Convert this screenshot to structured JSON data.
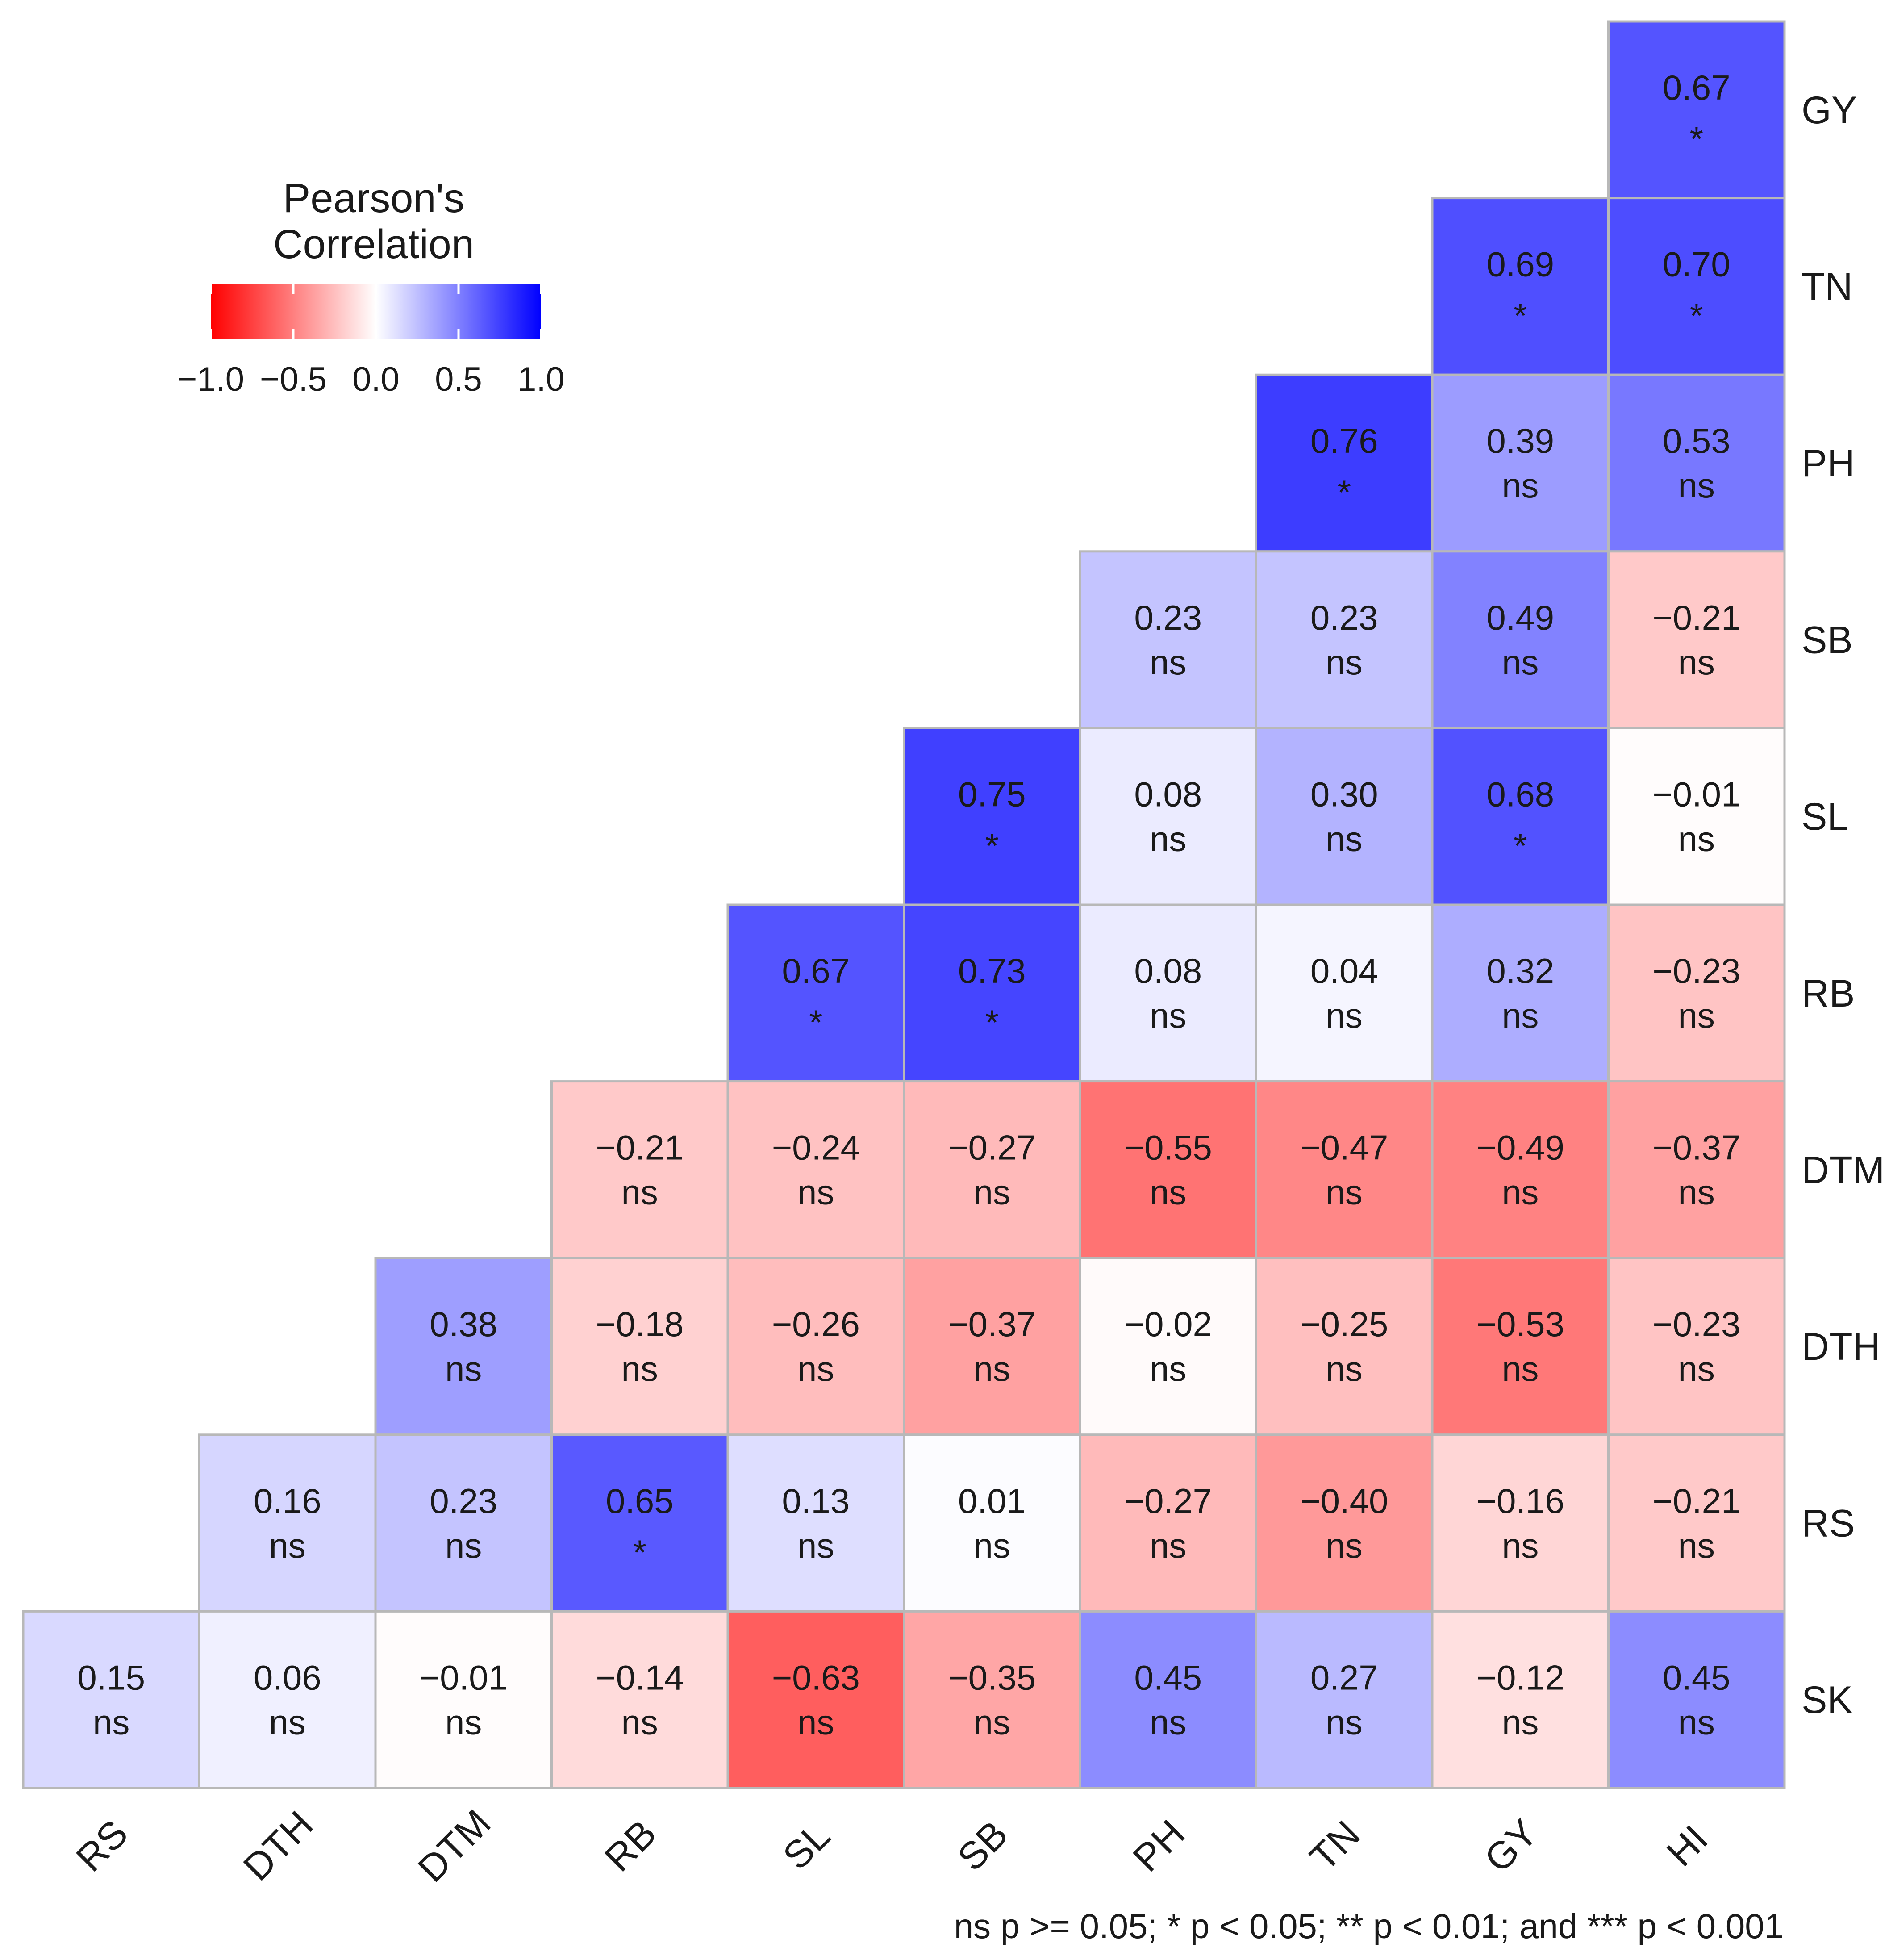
{
  "chart_data": {
    "type": "heatmap",
    "title": "",
    "method": "Pearson",
    "rows": [
      "GY",
      "TN",
      "PH",
      "SB",
      "SL",
      "RB",
      "DTM",
      "DTH",
      "RS",
      "SK"
    ],
    "columns": [
      "RS",
      "DTH",
      "DTM",
      "RB",
      "SL",
      "SB",
      "PH",
      "TN",
      "GY",
      "HI"
    ],
    "cells": [
      {
        "row": "GY",
        "col": "HI",
        "r": 0.67,
        "sig": "*"
      },
      {
        "row": "TN",
        "col": "GY",
        "r": 0.69,
        "sig": "*"
      },
      {
        "row": "TN",
        "col": "HI",
        "r": 0.7,
        "sig": "*"
      },
      {
        "row": "PH",
        "col": "TN",
        "r": 0.76,
        "sig": "*"
      },
      {
        "row": "PH",
        "col": "GY",
        "r": 0.39,
        "sig": "ns"
      },
      {
        "row": "PH",
        "col": "HI",
        "r": 0.53,
        "sig": "ns"
      },
      {
        "row": "SB",
        "col": "PH",
        "r": 0.23,
        "sig": "ns"
      },
      {
        "row": "SB",
        "col": "TN",
        "r": 0.23,
        "sig": "ns"
      },
      {
        "row": "SB",
        "col": "GY",
        "r": 0.49,
        "sig": "ns"
      },
      {
        "row": "SB",
        "col": "HI",
        "r": -0.21,
        "sig": "ns"
      },
      {
        "row": "SL",
        "col": "SB",
        "r": 0.75,
        "sig": "*"
      },
      {
        "row": "SL",
        "col": "PH",
        "r": 0.08,
        "sig": "ns"
      },
      {
        "row": "SL",
        "col": "TN",
        "r": 0.3,
        "sig": "ns"
      },
      {
        "row": "SL",
        "col": "GY",
        "r": 0.68,
        "sig": "*"
      },
      {
        "row": "SL",
        "col": "HI",
        "r": -0.01,
        "sig": "ns"
      },
      {
        "row": "RB",
        "col": "SL",
        "r": 0.67,
        "sig": "*"
      },
      {
        "row": "RB",
        "col": "SB",
        "r": 0.73,
        "sig": "*"
      },
      {
        "row": "RB",
        "col": "PH",
        "r": 0.08,
        "sig": "ns"
      },
      {
        "row": "RB",
        "col": "TN",
        "r": 0.04,
        "sig": "ns"
      },
      {
        "row": "RB",
        "col": "GY",
        "r": 0.32,
        "sig": "ns"
      },
      {
        "row": "RB",
        "col": "HI",
        "r": -0.23,
        "sig": "ns"
      },
      {
        "row": "DTM",
        "col": "RB",
        "r": -0.21,
        "sig": "ns"
      },
      {
        "row": "DTM",
        "col": "SL",
        "r": -0.24,
        "sig": "ns"
      },
      {
        "row": "DTM",
        "col": "SB",
        "r": -0.27,
        "sig": "ns"
      },
      {
        "row": "DTM",
        "col": "PH",
        "r": -0.55,
        "sig": "ns"
      },
      {
        "row": "DTM",
        "col": "TN",
        "r": -0.47,
        "sig": "ns"
      },
      {
        "row": "DTM",
        "col": "GY",
        "r": -0.49,
        "sig": "ns"
      },
      {
        "row": "DTM",
        "col": "HI",
        "r": -0.37,
        "sig": "ns"
      },
      {
        "row": "DTH",
        "col": "DTM",
        "r": 0.38,
        "sig": "ns"
      },
      {
        "row": "DTH",
        "col": "RB",
        "r": -0.18,
        "sig": "ns"
      },
      {
        "row": "DTH",
        "col": "SL",
        "r": -0.26,
        "sig": "ns"
      },
      {
        "row": "DTH",
        "col": "SB",
        "r": -0.37,
        "sig": "ns"
      },
      {
        "row": "DTH",
        "col": "PH",
        "r": -0.02,
        "sig": "ns"
      },
      {
        "row": "DTH",
        "col": "TN",
        "r": -0.25,
        "sig": "ns"
      },
      {
        "row": "DTH",
        "col": "GY",
        "r": -0.53,
        "sig": "ns"
      },
      {
        "row": "DTH",
        "col": "HI",
        "r": -0.23,
        "sig": "ns"
      },
      {
        "row": "RS",
        "col": "DTH",
        "r": 0.16,
        "sig": "ns"
      },
      {
        "row": "RS",
        "col": "DTM",
        "r": 0.23,
        "sig": "ns"
      },
      {
        "row": "RS",
        "col": "RB",
        "r": 0.65,
        "sig": "*"
      },
      {
        "row": "RS",
        "col": "SL",
        "r": 0.13,
        "sig": "ns"
      },
      {
        "row": "RS",
        "col": "SB",
        "r": 0.01,
        "sig": "ns"
      },
      {
        "row": "RS",
        "col": "PH",
        "r": -0.27,
        "sig": "ns"
      },
      {
        "row": "RS",
        "col": "TN",
        "r": -0.4,
        "sig": "ns"
      },
      {
        "row": "RS",
        "col": "GY",
        "r": -0.16,
        "sig": "ns"
      },
      {
        "row": "RS",
        "col": "HI",
        "r": -0.21,
        "sig": "ns"
      },
      {
        "row": "SK",
        "col": "RS",
        "r": 0.15,
        "sig": "ns"
      },
      {
        "row": "SK",
        "col": "DTH",
        "r": 0.06,
        "sig": "ns"
      },
      {
        "row": "SK",
        "col": "DTM",
        "r": -0.01,
        "sig": "ns"
      },
      {
        "row": "SK",
        "col": "RB",
        "r": -0.14,
        "sig": "ns"
      },
      {
        "row": "SK",
        "col": "SL",
        "r": -0.63,
        "sig": "ns"
      },
      {
        "row": "SK",
        "col": "SB",
        "r": -0.35,
        "sig": "ns"
      },
      {
        "row": "SK",
        "col": "PH",
        "r": 0.45,
        "sig": "ns"
      },
      {
        "row": "SK",
        "col": "TN",
        "r": 0.27,
        "sig": "ns"
      },
      {
        "row": "SK",
        "col": "GY",
        "r": -0.12,
        "sig": "ns"
      },
      {
        "row": "SK",
        "col": "HI",
        "r": 0.45,
        "sig": "ns"
      }
    ],
    "legend": {
      "title_line1": "Pearson's",
      "title_line2": "Correlation",
      "ticks": [
        -1.0,
        -0.5,
        0.0,
        0.5,
        1.0
      ],
      "tick_labels": [
        "−1.0",
        "−0.5",
        "0.0",
        "0.5",
        "1.0"
      ],
      "low_color": "#ff0000",
      "mid_color": "#ffffff",
      "high_color": "#0000ff",
      "placement": "top-left"
    },
    "footnote": "ns p >= 0.05; * p < 0.05; ** p < 0.01; and *** p < 0.001"
  }
}
